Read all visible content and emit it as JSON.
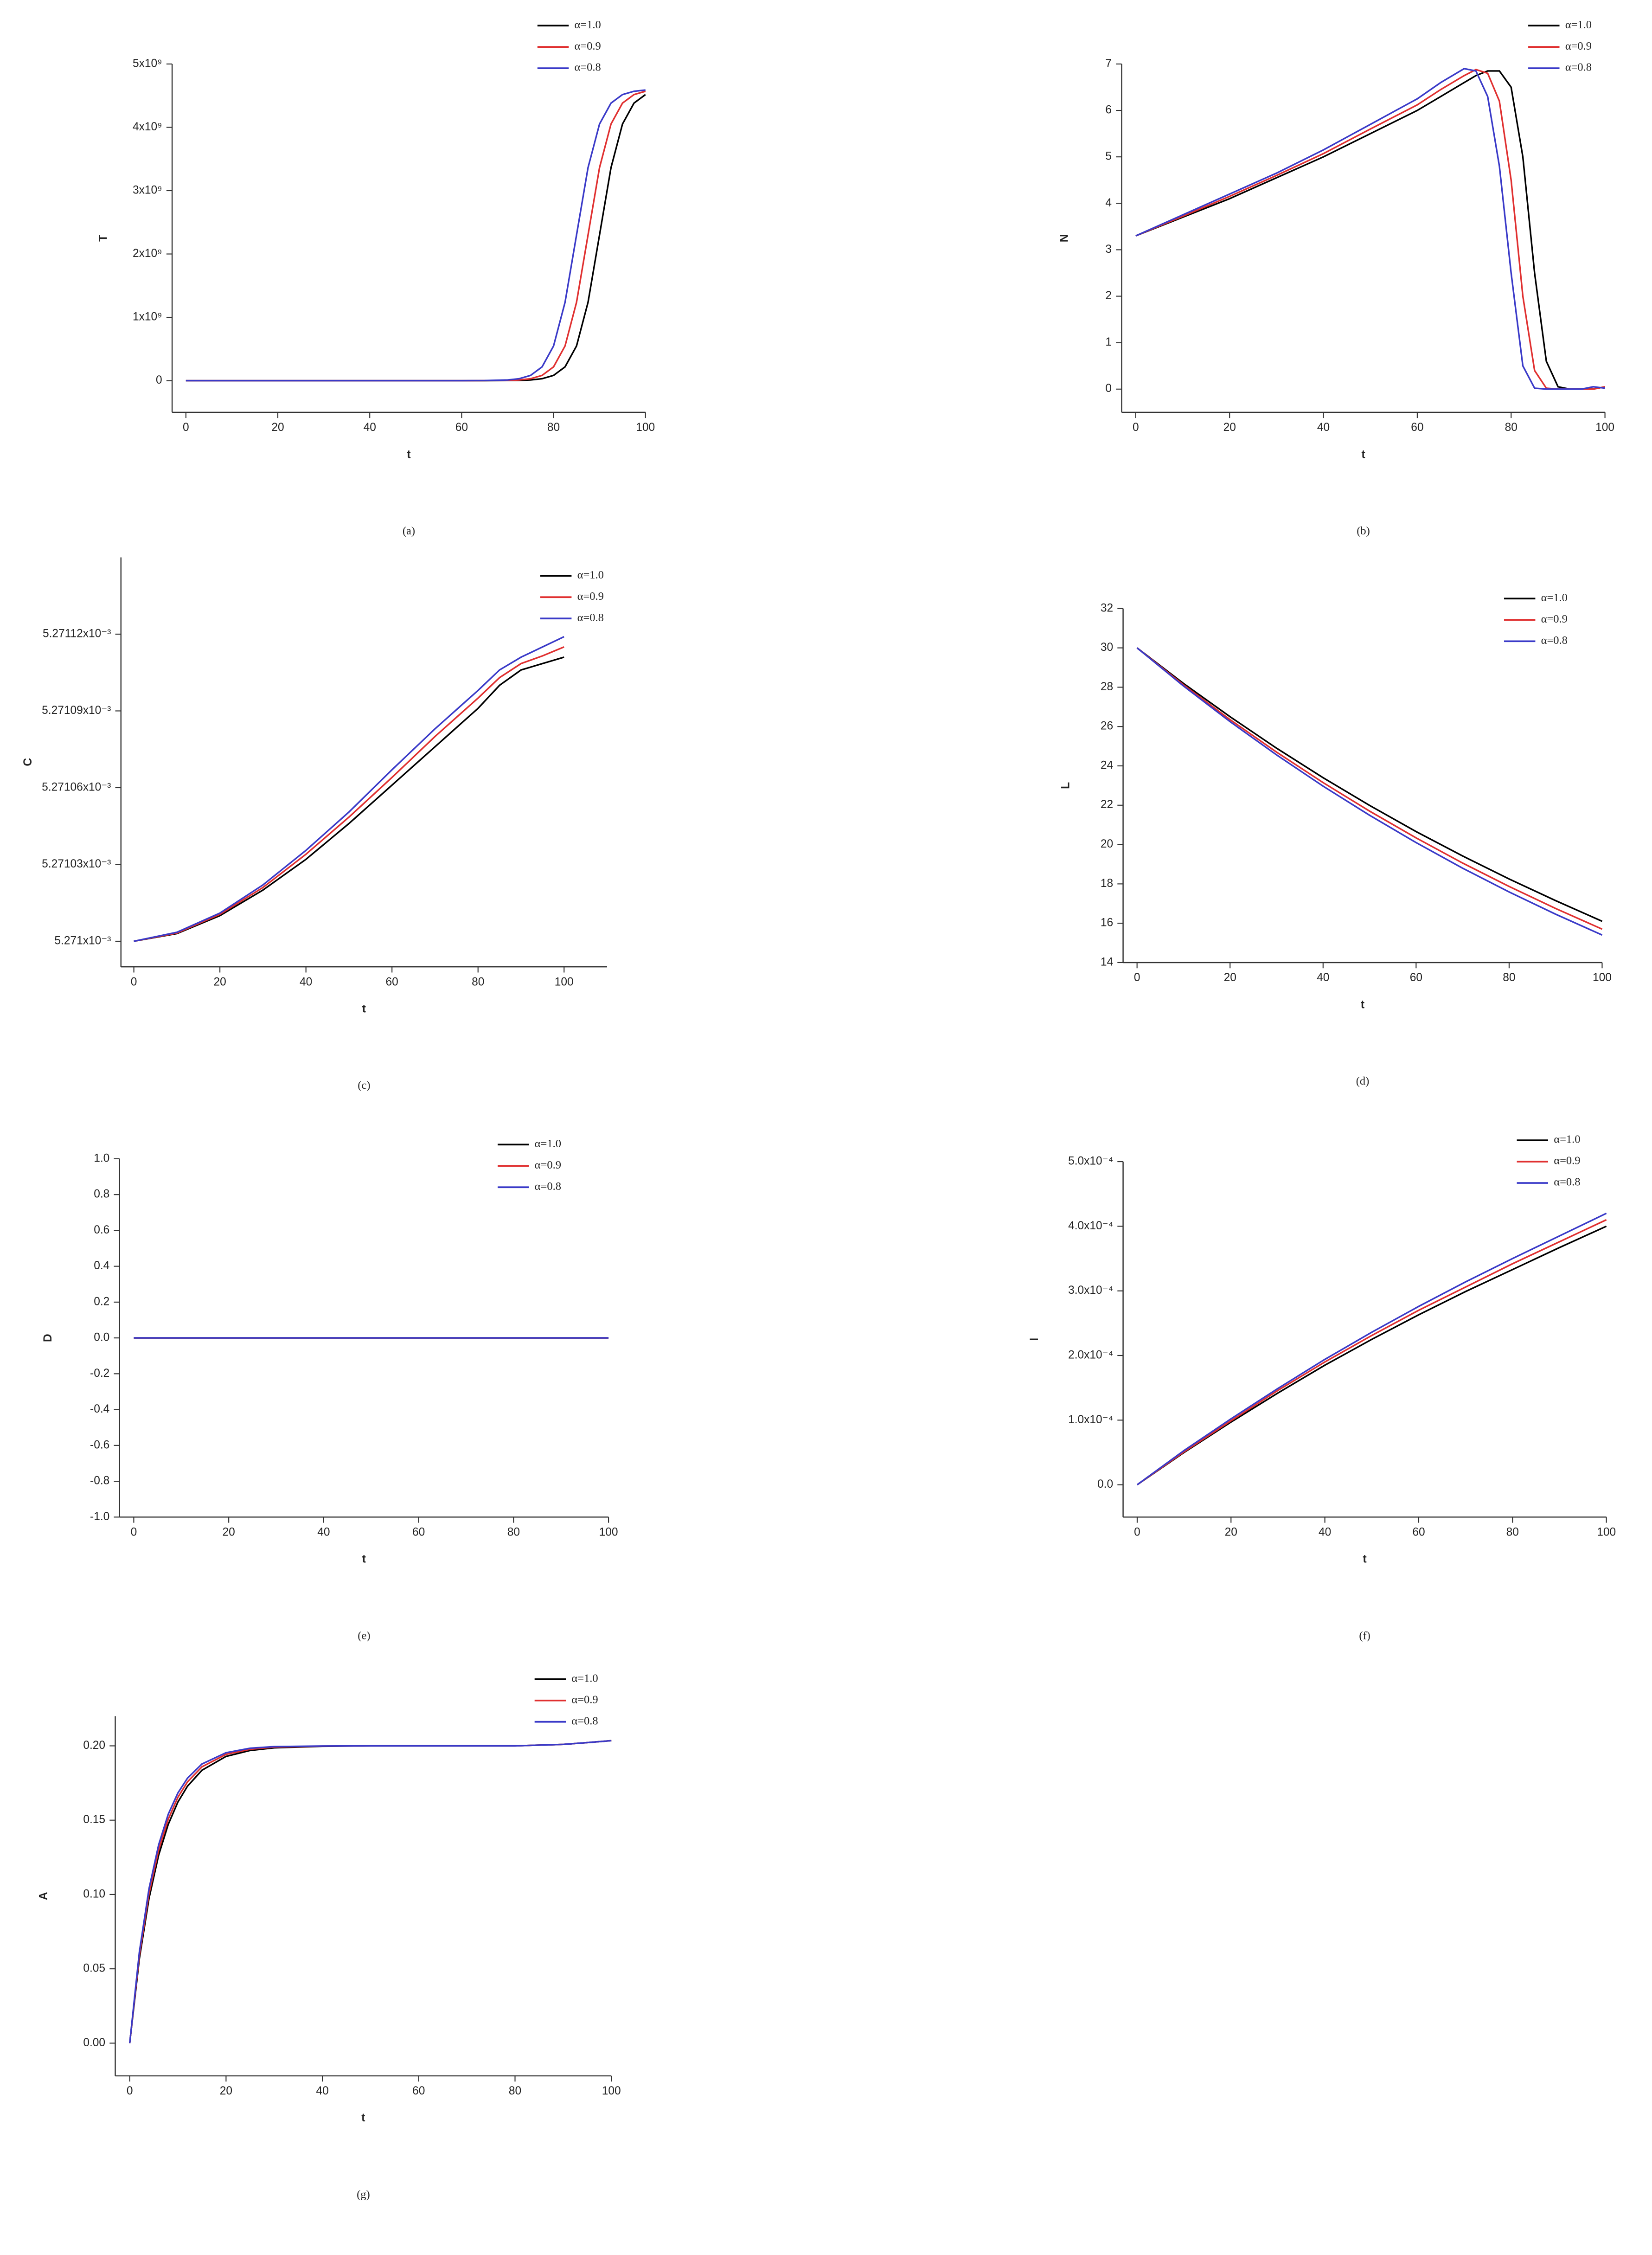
{
  "chart_data": [
    {
      "type": "line",
      "caption": "(a)",
      "ylabel": "T",
      "xlabel": "t",
      "x": [
        0,
        10,
        20,
        30,
        40,
        50,
        60,
        65,
        70,
        72.5,
        75,
        77.5,
        80,
        82.5,
        85,
        87.5,
        90,
        92.5,
        95,
        97.5,
        100
      ],
      "series": [
        {
          "name": "α=1.0",
          "color": "#000000",
          "values": [
            0,
            0,
            0,
            0,
            0,
            0,
            0,
            0,
            1500000,
            4200000,
            11400000,
            30800000,
            82700000,
            218000000,
            548000000,
            1237000000,
            2300000000,
            3363000000,
            4052000000,
            4382000000,
            4517000000
          ]
        },
        {
          "name": "α=0.9",
          "color": "#e03030",
          "values": [
            0,
            0,
            0,
            0,
            0,
            0,
            0,
            600000,
            4200000,
            11400000,
            30800000,
            82700000,
            218000000,
            548000000,
            1237000000,
            2300000000,
            3363000000,
            4052000000,
            4382000000,
            4517000000,
            4569000000
          ]
        },
        {
          "name": "α=0.8",
          "color": "#3a3ac8",
          "values": [
            0,
            0,
            0,
            0,
            0,
            0,
            0,
            1500000,
            11400000,
            30800000,
            82700000,
            218000000,
            548000000,
            1237000000,
            2300000000,
            3363000000,
            4052000000,
            4382000000,
            4517000000,
            4569000000,
            4589000000
          ]
        }
      ],
      "xlim": [
        -3,
        100
      ],
      "xticks": [
        0,
        20,
        40,
        60,
        80,
        100
      ],
      "ylim": [
        -500000000,
        5000000000
      ],
      "yticks": [
        0,
        {
          "value": 1000000000,
          "label": "1x10⁹"
        },
        {
          "value": 2000000000,
          "label": "2x10⁹"
        },
        {
          "value": 3000000000,
          "label": "3x10⁹"
        },
        {
          "value": 4000000000,
          "label": "4x10⁹"
        },
        {
          "value": 5000000000,
          "label": "5x10⁹"
        }
      ]
    },
    {
      "type": "line",
      "caption": "(b)",
      "ylabel": "N",
      "xlabel": "t",
      "x": [
        0,
        10,
        20,
        30,
        40,
        50,
        60,
        65,
        70,
        72.5,
        75,
        77.5,
        80,
        82.5,
        85,
        87.5,
        90,
        92.5,
        95,
        97.5,
        100
      ],
      "series": [
        {
          "name": "α=1.0",
          "color": "#000000",
          "values": [
            3.3,
            3.7,
            4.1,
            4.55,
            5.0,
            5.5,
            6.0,
            6.3,
            6.6,
            6.75,
            6.85,
            6.85,
            6.5,
            5.0,
            2.5,
            0.6,
            0.05,
            0,
            0,
            0,
            0.05
          ]
        },
        {
          "name": "α=0.9",
          "color": "#e03030",
          "values": [
            3.3,
            3.72,
            4.15,
            4.6,
            5.07,
            5.6,
            6.12,
            6.45,
            6.75,
            6.88,
            6.8,
            6.2,
            4.5,
            2.0,
            0.4,
            0.02,
            0,
            0,
            0,
            0,
            0.05
          ]
        },
        {
          "name": "α=0.8",
          "color": "#3a3ac8",
          "values": [
            3.3,
            3.75,
            4.2,
            4.65,
            5.15,
            5.7,
            6.25,
            6.6,
            6.9,
            6.85,
            6.3,
            4.8,
            2.5,
            0.5,
            0.02,
            0,
            0,
            0,
            0,
            0.05,
            0.02
          ]
        }
      ],
      "xlim": [
        -3,
        100
      ],
      "xticks": [
        0,
        20,
        40,
        60,
        80,
        100
      ],
      "ylim": [
        -0.5,
        7
      ],
      "yticks": [
        0,
        1,
        2,
        3,
        4,
        5,
        6,
        7
      ]
    },
    {
      "type": "line",
      "caption": "(c)",
      "ylabel": "C",
      "xlabel": "t",
      "x": [
        0,
        10,
        20,
        30,
        40,
        50,
        60,
        70,
        80,
        85,
        90,
        95,
        100
      ],
      "series": [
        {
          "name": "α=1.0",
          "color": "#000000",
          "values": [
            0.005271,
            0.005271003,
            0.00527101,
            0.00527102,
            0.005271032,
            0.005271046,
            0.005271061,
            0.005271076,
            0.005271091,
            0.0052711,
            0.005271106,
            0.0052711085,
            0.005271111
          ]
        },
        {
          "name": "α=0.9",
          "color": "#e03030",
          "values": [
            0.005271,
            0.0052710032,
            0.0052710105,
            0.005271021,
            0.005271034,
            0.0052710485,
            0.005271064,
            0.00527108,
            0.005271095,
            0.005271103,
            0.0052711085,
            0.0052711115,
            0.005271115
          ]
        },
        {
          "name": "α=0.8",
          "color": "#3a3ac8",
          "values": [
            0.005271,
            0.0052710035,
            0.005271011,
            0.005271022,
            0.0052710355,
            0.0052710505,
            0.005271067,
            0.005271083,
            0.005271098,
            0.005271106,
            0.005271111,
            0.005271115,
            0.005271119
          ]
        }
      ],
      "xlim": [
        -3,
        110
      ],
      "xticks": [
        0,
        20,
        40,
        60,
        80,
        100
      ],
      "ylim": [
        0.00527099,
        0.00527115
      ],
      "yticks": [
        {
          "value": 0.005271,
          "label": "5.271x10⁻³"
        },
        {
          "value": 0.00527103,
          "label": "5.27103x10⁻³"
        },
        {
          "value": 0.00527106,
          "label": "5.27106x10⁻³"
        },
        {
          "value": 0.00527109,
          "label": "5.27109x10⁻³"
        },
        {
          "value": 0.00527112,
          "label": "5.27112x10⁻³"
        }
      ]
    },
    {
      "type": "line",
      "caption": "(d)",
      "ylabel": "L",
      "xlabel": "t",
      "x": [
        0,
        10,
        20,
        30,
        40,
        50,
        60,
        70,
        80,
        90,
        100
      ],
      "series": [
        {
          "name": "α=1.0",
          "color": "#000000",
          "values": [
            30,
            28.19,
            26.5,
            24.9,
            23.4,
            21.99,
            20.66,
            19.42,
            18.25,
            17.15,
            16.1
          ]
        },
        {
          "name": "α=0.9",
          "color": "#e03030",
          "values": [
            30,
            28.12,
            26.35,
            24.7,
            23.15,
            21.7,
            20.34,
            19.06,
            17.87,
            16.75,
            15.7
          ]
        },
        {
          "name": "α=0.8",
          "color": "#3a3ac8",
          "values": [
            30,
            28.06,
            26.25,
            24.56,
            22.97,
            21.49,
            20.1,
            18.8,
            17.59,
            16.46,
            15.4
          ]
        }
      ],
      "xlim": [
        -3,
        100
      ],
      "xticks": [
        0,
        20,
        40,
        60,
        80,
        100
      ],
      "ylim": [
        14,
        32
      ],
      "yticks": [
        14,
        16,
        18,
        20,
        22,
        24,
        26,
        28,
        30,
        32
      ]
    },
    {
      "type": "line",
      "caption": "(e)",
      "ylabel": "D",
      "xlabel": "t",
      "x": [
        0,
        100
      ],
      "series": [
        {
          "name": "α=1.0",
          "color": "#000000",
          "values": [
            0,
            0
          ]
        },
        {
          "name": "α=0.9",
          "color": "#e03030",
          "values": [
            0,
            0
          ]
        },
        {
          "name": "α=0.8",
          "color": "#3a3ac8",
          "values": [
            0,
            0
          ]
        }
      ],
      "xlim": [
        -3,
        100
      ],
      "xticks": [
        0,
        20,
        40,
        60,
        80,
        100
      ],
      "ylim": [
        -1,
        1
      ],
      "yticks": [
        {
          "value": -1,
          "label": "-1.0"
        },
        -0.8,
        -0.6,
        -0.4,
        -0.2,
        {
          "value": 0,
          "label": "0.0"
        },
        0.2,
        0.4,
        0.6,
        0.8,
        {
          "value": 1,
          "label": "1.0"
        }
      ]
    },
    {
      "type": "line",
      "caption": "(f)",
      "ylabel": "I",
      "xlabel": "t",
      "x": [
        0,
        10,
        20,
        30,
        40,
        50,
        60,
        70,
        80,
        90,
        100
      ],
      "series": [
        {
          "name": "α=1.0",
          "color": "#000000",
          "values": [
            0,
            5e-05,
            9.7e-05,
            0.000142,
            0.000185,
            0.000225,
            0.000263,
            0.000299,
            0.000333,
            0.000367,
            0.0004
          ]
        },
        {
          "name": "α=0.9",
          "color": "#e03030",
          "values": [
            0,
            5.1e-05,
            9.9e-05,
            0.000146,
            0.00019,
            0.000231,
            0.00027,
            0.000306,
            0.000342,
            0.000376,
            0.00041
          ]
        },
        {
          "name": "α=0.8",
          "color": "#3a3ac8",
          "values": [
            0,
            5.3e-05,
            0.000102,
            0.000149,
            0.000194,
            0.000236,
            0.000276,
            0.000314,
            0.00035,
            0.000385,
            0.00042
          ]
        }
      ],
      "xlim": [
        -3,
        100
      ],
      "xticks": [
        0,
        20,
        40,
        60,
        80,
        100
      ],
      "ylim": [
        -5e-05,
        0.0005
      ],
      "yticks": [
        {
          "value": 0,
          "label": "0.0"
        },
        {
          "value": 0.0001,
          "label": "1.0x10⁻⁴"
        },
        {
          "value": 0.0002,
          "label": "2.0x10⁻⁴"
        },
        {
          "value": 0.0003,
          "label": "3.0x10⁻⁴"
        },
        {
          "value": 0.0004,
          "label": "4.0x10⁻⁴"
        },
        {
          "value": 0.0005,
          "label": "5.0x10⁻⁴"
        }
      ]
    },
    {
      "type": "line",
      "caption": "(g)",
      "ylabel": "A",
      "xlabel": "t",
      "x": [
        0,
        2,
        4,
        6,
        8,
        10,
        12,
        15,
        20,
        25,
        30,
        40,
        50,
        60,
        70,
        80,
        85,
        90,
        95,
        100
      ],
      "series": [
        {
          "name": "α=1.0",
          "color": "#000000",
          "values": [
            0,
            0.0567,
            0.0973,
            0.1264,
            0.1472,
            0.1622,
            0.1729,
            0.1836,
            0.1929,
            0.1969,
            0.1987,
            0.1997,
            0.2,
            0.2,
            0.2,
            0.2,
            0.2005,
            0.201,
            0.2022,
            0.2035
          ]
        },
        {
          "name": "α=0.9",
          "color": "#e03030",
          "values": [
            0,
            0.0589,
            0.1005,
            0.1299,
            0.1506,
            0.1654,
            0.1758,
            0.1859,
            0.1943,
            0.1977,
            0.1992,
            0.1998,
            0.2,
            0.2,
            0.2,
            0.2,
            0.2005,
            0.201,
            0.2022,
            0.2035
          ]
        },
        {
          "name": "α=0.8",
          "color": "#3a3ac8",
          "values": [
            0,
            0.0612,
            0.1038,
            0.1334,
            0.154,
            0.1683,
            0.1783,
            0.1878,
            0.1954,
            0.1984,
            0.1995,
            0.1999,
            0.2,
            0.2,
            0.2,
            0.2,
            0.2005,
            0.201,
            0.2022,
            0.2035
          ]
        }
      ],
      "xlim": [
        -3,
        100
      ],
      "xticks": [
        0,
        20,
        40,
        60,
        80,
        100
      ],
      "ylim": [
        -0.022,
        0.22
      ],
      "yticks": [
        {
          "value": 0,
          "label": "0.00"
        },
        0.05,
        {
          "value": 0.1,
          "label": "0.10"
        },
        0.15,
        {
          "value": 0.2,
          "label": "0.20"
        }
      ]
    }
  ]
}
